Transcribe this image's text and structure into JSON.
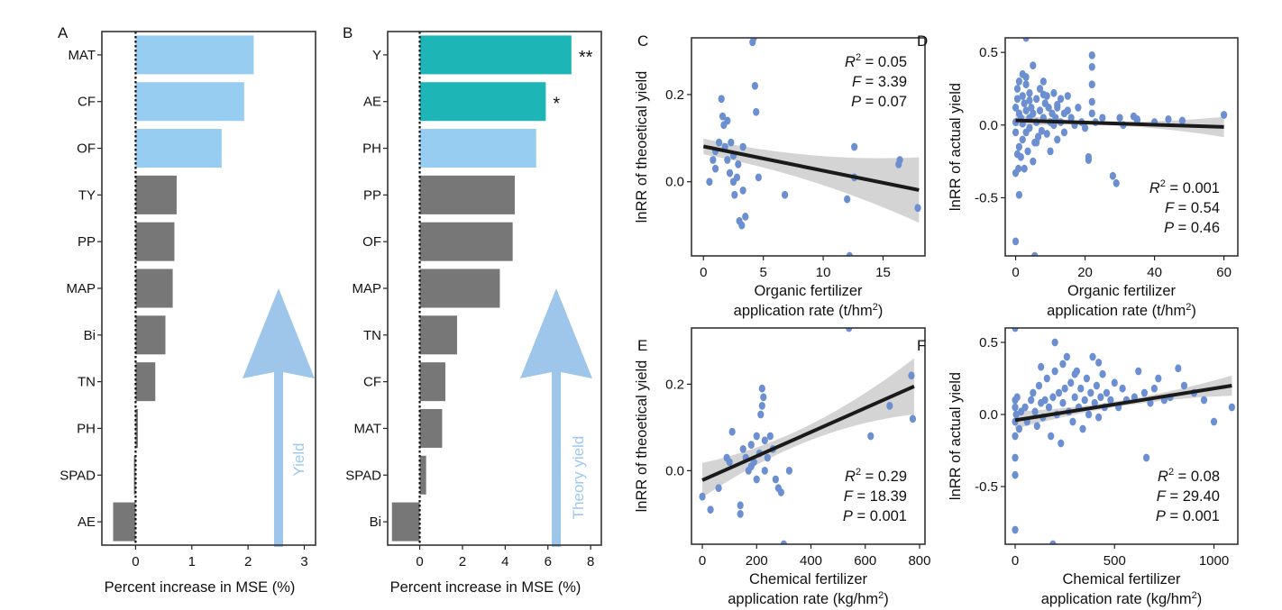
{
  "colors": {
    "light_blue": "#96cdf1",
    "teal": "#1db5b6",
    "gray": "#777777",
    "arrow": "#9ec6ea",
    "point": "#6b8fd0",
    "ci": "#d4d4d4",
    "line": "#1a1a1a",
    "arrow_text": "#9ec8ee"
  },
  "chart_data": [
    {
      "panel": "A",
      "type": "bar",
      "orientation": "horizontal",
      "categories": [
        "MAT",
        "CF",
        "OF",
        "TY",
        "PP",
        "MAP",
        "Bi",
        "TN",
        "PH",
        "SPAD",
        "AE"
      ],
      "values": [
        2.1,
        1.93,
        1.53,
        0.73,
        0.69,
        0.66,
        0.53,
        0.35,
        0.04,
        -0.03,
        -0.4
      ],
      "highlight": [
        "light",
        "light",
        "light",
        "gray",
        "gray",
        "gray",
        "gray",
        "gray",
        "gray",
        "gray",
        "gray"
      ],
      "xlabel": "Percent increase in MSE (%)",
      "xlim": [
        -0.6,
        3.2
      ],
      "xticks": [
        "0",
        "1",
        "2",
        "3"
      ],
      "arrow_label": "Yield"
    },
    {
      "panel": "B",
      "type": "bar",
      "orientation": "horizontal",
      "categories": [
        "Y",
        "AE",
        "PH",
        "PP",
        "OF",
        "MAP",
        "TN",
        "CF",
        "MAT",
        "SPAD",
        "Bi"
      ],
      "values": [
        7.1,
        5.9,
        5.45,
        4.45,
        4.35,
        3.75,
        1.75,
        1.2,
        1.05,
        0.3,
        -1.3
      ],
      "highlight": [
        "teal",
        "teal",
        "light",
        "gray",
        "gray",
        "gray",
        "gray",
        "gray",
        "gray",
        "gray",
        "gray"
      ],
      "annotations": [
        "**",
        "*",
        "",
        "",
        "",
        "",
        "",
        "",
        "",
        "",
        ""
      ],
      "xlabel": "Percent increase in MSE (%)",
      "xlim": [
        -1.5,
        8.5
      ],
      "xticks": [
        "0",
        "2",
        "4",
        "6",
        "8"
      ],
      "arrow_label": "Theory yield"
    },
    {
      "panel": "C",
      "type": "scatter",
      "xlabel": [
        "Organic fertilizer",
        "application rate (t/hm",
        "2",
        ")"
      ],
      "ylabel": "lnRR of theoetical yield",
      "xlim": [
        -1,
        18.5
      ],
      "ylim": [
        -0.17,
        0.33
      ],
      "xticks": [
        "0",
        "5",
        "10",
        "15"
      ],
      "yticks": [
        "0.0",
        "0.2"
      ],
      "stats": {
        "r2": " = 0.05",
        "f": " = 3.39",
        "p": " = 0.07"
      },
      "points": [
        [
          0.5,
          0.0
        ],
        [
          0.8,
          0.05
        ],
        [
          1.0,
          0.03
        ],
        [
          1.0,
          0.07
        ],
        [
          1.3,
          0.09
        ],
        [
          1.5,
          0.19
        ],
        [
          1.6,
          0.15
        ],
        [
          1.7,
          0.13
        ],
        [
          1.8,
          0.08
        ],
        [
          2.0,
          0.05
        ],
        [
          2.0,
          0.14
        ],
        [
          2.2,
          0.02
        ],
        [
          2.3,
          0.09
        ],
        [
          2.5,
          0.0
        ],
        [
          2.5,
          0.06
        ],
        [
          2.6,
          -0.03
        ],
        [
          2.8,
          0.01
        ],
        [
          2.9,
          0.04
        ],
        [
          3.0,
          -0.09
        ],
        [
          3.2,
          -0.1
        ],
        [
          3.3,
          0.08
        ],
        [
          3.5,
          -0.08
        ],
        [
          3.3,
          -0.02
        ],
        [
          4.1,
          0.32
        ],
        [
          4.2,
          0.33
        ],
        [
          4.3,
          0.22
        ],
        [
          4.4,
          0.16
        ],
        [
          4.6,
          0.01
        ],
        [
          6.8,
          -0.03
        ],
        [
          12.0,
          -0.04
        ],
        [
          12.2,
          -0.17
        ],
        [
          12.6,
          0.08
        ],
        [
          12.6,
          0.01
        ],
        [
          16.3,
          0.04
        ],
        [
          16.4,
          0.05
        ],
        [
          17.9,
          -0.06
        ]
      ],
      "fit": {
        "x": [
          0,
          18
        ],
        "y": [
          0.081,
          -0.019
        ]
      },
      "ci_halfwidth": [
        0.018,
        0.03,
        0.075
      ]
    },
    {
      "panel": "D",
      "type": "scatter",
      "xlabel": [
        "Organic fertilizer",
        "application rate (t/hm",
        "2",
        ")"
      ],
      "ylabel": "lnRR of actual yield",
      "xlim": [
        -3,
        64
      ],
      "ylim": [
        -0.9,
        0.6
      ],
      "xticks": [
        "0",
        "20",
        "40",
        "60"
      ],
      "yticks": [
        "-0.5",
        "0.0",
        "0.5"
      ],
      "stats": {
        "r2": " = 0.001",
        "f": " = 0.54",
        "p": " = 0.46"
      },
      "points": [
        [
          0,
          0.02
        ],
        [
          0,
          -0.05
        ],
        [
          0,
          0.12
        ],
        [
          0,
          -0.8
        ],
        [
          0,
          -0.33
        ],
        [
          0.5,
          0.18
        ],
        [
          0.5,
          0.25
        ],
        [
          0.8,
          -0.3
        ],
        [
          1,
          0.08
        ],
        [
          1,
          -0.15
        ],
        [
          1,
          0.3
        ],
        [
          1.5,
          -0.22
        ],
        [
          1.5,
          0.05
        ],
        [
          2,
          0.2
        ],
        [
          2,
          -0.1
        ],
        [
          2,
          0.01
        ],
        [
          2.5,
          0.15
        ],
        [
          2.5,
          -0.3
        ],
        [
          3,
          0.6
        ],
        [
          3,
          0.33
        ],
        [
          3,
          -0.05
        ],
        [
          3,
          0.1
        ],
        [
          3.5,
          -0.18
        ],
        [
          4,
          0.22
        ],
        [
          4,
          0.05
        ],
        [
          4,
          -0.02
        ],
        [
          4.5,
          0.12
        ],
        [
          5,
          -0.25
        ],
        [
          5,
          0.41
        ],
        [
          5,
          0.08
        ],
        [
          5.5,
          -0.12
        ],
        [
          5.5,
          -0.9
        ],
        [
          6,
          0.18
        ],
        [
          6,
          0.02
        ],
        [
          6.5,
          -0.08
        ],
        [
          7,
          0.25
        ],
        [
          7,
          0.1
        ],
        [
          7.5,
          -0.04
        ],
        [
          8,
          0.3
        ],
        [
          8,
          0.05
        ],
        [
          8.5,
          0.15
        ],
        [
          9,
          -0.06
        ],
        [
          9,
          0.2
        ],
        [
          9.5,
          0.12
        ],
        [
          10,
          0.02
        ],
        [
          10,
          -0.18
        ],
        [
          10.5,
          0.08
        ],
        [
          11,
          0.22
        ],
        [
          11,
          0.0
        ],
        [
          11.5,
          0.05
        ],
        [
          12,
          0.12
        ],
        [
          12,
          -0.1
        ],
        [
          13,
          0.18
        ],
        [
          13,
          0.02
        ],
        [
          14,
          0.08
        ],
        [
          14,
          -0.05
        ],
        [
          15,
          0.1
        ],
        [
          15,
          0.2
        ],
        [
          16,
          0.05
        ],
        [
          17,
          0.0
        ],
        [
          18,
          0.12
        ],
        [
          19,
          0.02
        ],
        [
          20,
          -0.02
        ],
        [
          21,
          -0.22
        ],
        [
          21,
          -0.24
        ],
        [
          22,
          0.28
        ],
        [
          22,
          0.16
        ],
        [
          22,
          0.08
        ],
        [
          22,
          0.4
        ],
        [
          22,
          0.48
        ],
        [
          23,
          0.02
        ],
        [
          25,
          0.05
        ],
        [
          28,
          -0.35
        ],
        [
          29,
          -0.4
        ],
        [
          30,
          0.05
        ],
        [
          31,
          0.0
        ],
        [
          34,
          0.06
        ],
        [
          35,
          0.04
        ],
        [
          35,
          0.03
        ],
        [
          40,
          0.02
        ],
        [
          44,
          0.04
        ],
        [
          48,
          0.03
        ],
        [
          60,
          0.07
        ],
        [
          2,
          0.35
        ],
        [
          1,
          -0.48
        ],
        [
          3,
          0.28
        ],
        [
          0.5,
          -0.2
        ],
        [
          6,
          -0.12
        ],
        [
          8,
          0.21
        ],
        [
          12,
          0.14
        ],
        [
          4,
          0.17
        ]
      ],
      "fit": {
        "x": [
          0,
          60
        ],
        "y": [
          0.032,
          -0.013
        ]
      },
      "ci_halfwidth": [
        0.04,
        0.015,
        0.07
      ]
    },
    {
      "panel": "E",
      "type": "scatter",
      "xlabel": [
        "Chemical fertilizer",
        "application rate (kg/hm",
        "2",
        ")"
      ],
      "ylabel": "lnRR of theoetical yield",
      "xlim": [
        -40,
        820
      ],
      "ylim": [
        -0.17,
        0.33
      ],
      "xticks": [
        "0",
        "200",
        "400",
        "600",
        "800"
      ],
      "yticks": [
        "0.0",
        "0.2"
      ],
      "stats": {
        "r2": " = 0.29",
        "f": " = 18.39",
        "p": " = 0.001"
      },
      "points": [
        [
          0,
          -0.06
        ],
        [
          30,
          -0.09
        ],
        [
          60,
          -0.04
        ],
        [
          90,
          0.03
        ],
        [
          100,
          0.02
        ],
        [
          110,
          0.09
        ],
        [
          140,
          -0.08
        ],
        [
          140,
          -0.1
        ],
        [
          150,
          0.05
        ],
        [
          160,
          0.03
        ],
        [
          170,
          0.0
        ],
        [
          180,
          0.06
        ],
        [
          190,
          0.02
        ],
        [
          200,
          0.08
        ],
        [
          210,
          0.04
        ],
        [
          215,
          0.13
        ],
        [
          220,
          0.15
        ],
        [
          220,
          0.19
        ],
        [
          225,
          0.17
        ],
        [
          230,
          0.07
        ],
        [
          230,
          0.0
        ],
        [
          240,
          0.03
        ],
        [
          250,
          0.08
        ],
        [
          260,
          0.05
        ],
        [
          270,
          -0.02
        ],
        [
          280,
          -0.04
        ],
        [
          290,
          -0.05
        ],
        [
          300,
          -0.17
        ],
        [
          320,
          0.0
        ],
        [
          540,
          0.33
        ],
        [
          620,
          0.08
        ],
        [
          690,
          0.15
        ],
        [
          770,
          0.22
        ],
        [
          775,
          0.12
        ],
        [
          200,
          -0.02
        ],
        [
          180,
          0.01
        ]
      ],
      "fit": {
        "x": [
          0,
          780
        ],
        "y": [
          -0.022,
          0.195
        ]
      },
      "ci_halfwidth": [
        0.04,
        0.018,
        0.065
      ]
    },
    {
      "panel": "F",
      "type": "scatter",
      "xlabel": [
        "Chemical fertilizer",
        "application rate (kg/hm",
        "2",
        ")"
      ],
      "ylabel": "lnRR of actual yield",
      "xlim": [
        -50,
        1120
      ],
      "ylim": [
        -0.9,
        0.6
      ],
      "xticks": [
        "0",
        "500",
        "1000"
      ],
      "yticks": [
        "-0.5",
        "0.0",
        "0.5"
      ],
      "stats": {
        "r2": " = 0.08",
        "f": " = 29.40",
        "p": " = 0.001"
      },
      "points": [
        [
          0,
          0.6
        ],
        [
          0,
          0.1
        ],
        [
          0,
          0.05
        ],
        [
          0,
          -0.05
        ],
        [
          0,
          -0.15
        ],
        [
          0,
          -0.3
        ],
        [
          0,
          -0.8
        ],
        [
          0,
          -0.42
        ],
        [
          5,
          0.0
        ],
        [
          10,
          0.12
        ],
        [
          20,
          -0.1
        ],
        [
          30,
          0.02
        ],
        [
          50,
          0.05
        ],
        [
          60,
          -0.05
        ],
        [
          80,
          0.1
        ],
        [
          90,
          0.15
        ],
        [
          100,
          0.02
        ],
        [
          110,
          -0.08
        ],
        [
          120,
          0.2
        ],
        [
          130,
          0.08
        ],
        [
          140,
          -0.02
        ],
        [
          150,
          0.1
        ],
        [
          160,
          0.25
        ],
        [
          170,
          0.05
        ],
        [
          180,
          -0.15
        ],
        [
          190,
          0.12
        ],
        [
          200,
          0.5
        ],
        [
          200,
          0.3
        ],
        [
          210,
          0.0
        ],
        [
          220,
          0.15
        ],
        [
          230,
          -0.2
        ],
        [
          240,
          0.08
        ],
        [
          250,
          0.18
        ],
        [
          260,
          0.4
        ],
        [
          270,
          0.02
        ],
        [
          280,
          0.22
        ],
        [
          290,
          -0.05
        ],
        [
          300,
          0.12
        ],
        [
          310,
          0.3
        ],
        [
          320,
          0.05
        ],
        [
          330,
          0.18
        ],
        [
          340,
          -0.1
        ],
        [
          350,
          0.1
        ],
        [
          360,
          0.25
        ],
        [
          370,
          0.0
        ],
        [
          380,
          0.15
        ],
        [
          390,
          0.4
        ],
        [
          400,
          0.08
        ],
        [
          410,
          0.2
        ],
        [
          420,
          -0.02
        ],
        [
          430,
          0.12
        ],
        [
          440,
          0.28
        ],
        [
          450,
          0.05
        ],
        [
          460,
          0.15
        ],
        [
          480,
          0.1
        ],
        [
          500,
          0.22
        ],
        [
          520,
          0.05
        ],
        [
          540,
          0.18
        ],
        [
          560,
          0.1
        ],
        [
          600,
          0.12
        ],
        [
          620,
          0.3
        ],
        [
          650,
          0.15
        ],
        [
          660,
          -0.3
        ],
        [
          680,
          0.08
        ],
        [
          700,
          0.18
        ],
        [
          720,
          0.25
        ],
        [
          750,
          0.1
        ],
        [
          780,
          0.12
        ],
        [
          820,
          0.32
        ],
        [
          850,
          0.2
        ],
        [
          900,
          0.15
        ],
        [
          950,
          0.1
        ],
        [
          1000,
          -0.05
        ],
        [
          1090,
          0.05
        ],
        [
          190,
          -0.9
        ],
        [
          240,
          0.35
        ],
        [
          300,
          0.28
        ],
        [
          130,
          0.33
        ],
        [
          420,
          0.36
        ]
      ],
      "fit": {
        "x": [
          0,
          1090
        ],
        "y": [
          -0.04,
          0.2
        ]
      },
      "ci_halfwidth": [
        0.06,
        0.02,
        0.07
      ]
    }
  ]
}
